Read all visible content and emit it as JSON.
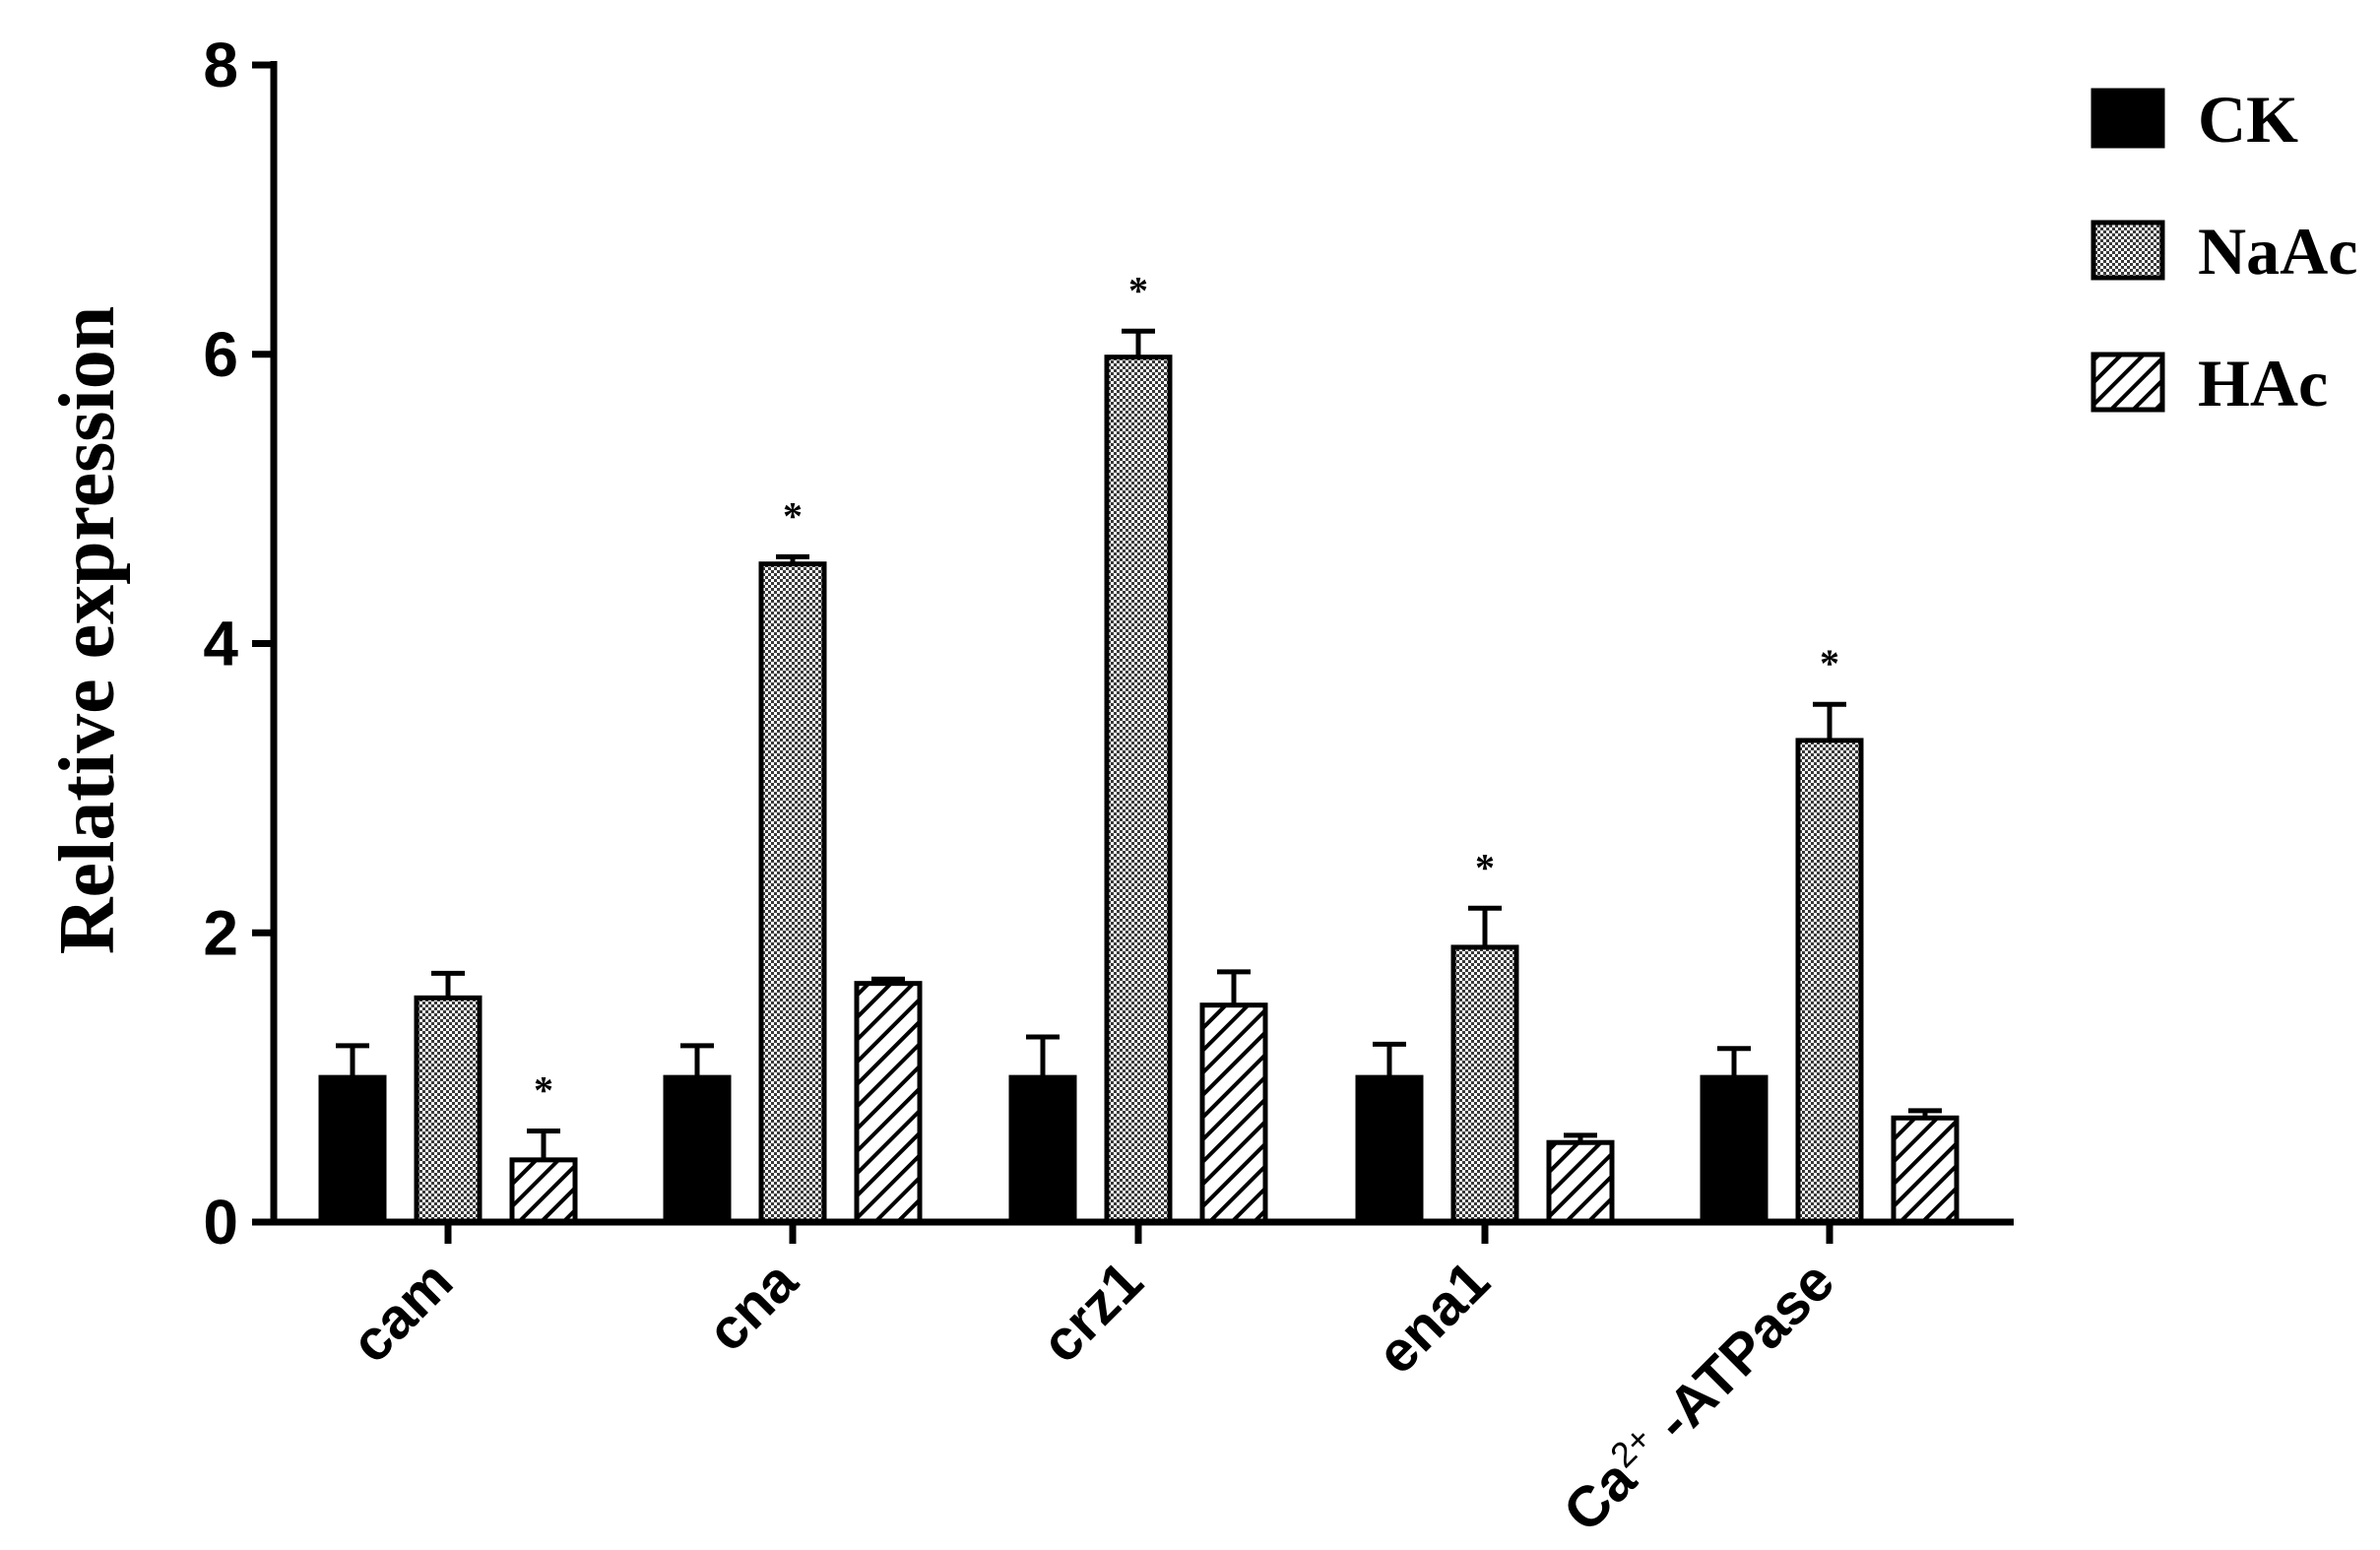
{
  "chart_data": {
    "type": "bar",
    "title": "",
    "xlabel": "",
    "ylabel": "Relative expression",
    "ylim": [
      0,
      8
    ],
    "yticks": [
      0,
      2,
      4,
      6,
      8
    ],
    "yticks_labels": [
      "0",
      "2",
      "4",
      "6",
      "8"
    ],
    "categories": [
      "cam",
      "cna",
      "crz1",
      "ena1",
      "Ca2+-ATPase"
    ],
    "category_display": [
      {
        "base": "cam",
        "sup": "",
        "rest": ""
      },
      {
        "base": "cna",
        "sup": "",
        "rest": ""
      },
      {
        "base": "crz1",
        "sup": "",
        "rest": ""
      },
      {
        "base": "ena1",
        "sup": "",
        "rest": ""
      },
      {
        "base": "Ca",
        "sup": "2+",
        "rest": " -ATPase"
      }
    ],
    "significance_marker": "*",
    "legend_position": "top-right",
    "grid": false,
    "series": [
      {
        "name": "CK",
        "pattern": "solid",
        "color": "#000000",
        "values": [
          1.0,
          1.0,
          1.0,
          1.0,
          1.0
        ],
        "errors": [
          0.22,
          0.22,
          0.28,
          0.23,
          0.2
        ],
        "significant": [
          false,
          false,
          false,
          false,
          false
        ]
      },
      {
        "name": "NaAc",
        "pattern": "checker",
        "color": "#555555",
        "values": [
          1.55,
          4.55,
          5.98,
          1.9,
          3.33
        ],
        "errors": [
          0.17,
          0.05,
          0.18,
          0.27,
          0.25
        ],
        "significant": [
          false,
          true,
          true,
          true,
          true
        ]
      },
      {
        "name": "HAc",
        "pattern": "hatch",
        "color": "#000000",
        "values": [
          0.43,
          1.65,
          1.5,
          0.55,
          0.72
        ],
        "errors": [
          0.2,
          0.03,
          0.23,
          0.05,
          0.05
        ],
        "significant": [
          true,
          false,
          false,
          false,
          false
        ]
      }
    ]
  }
}
